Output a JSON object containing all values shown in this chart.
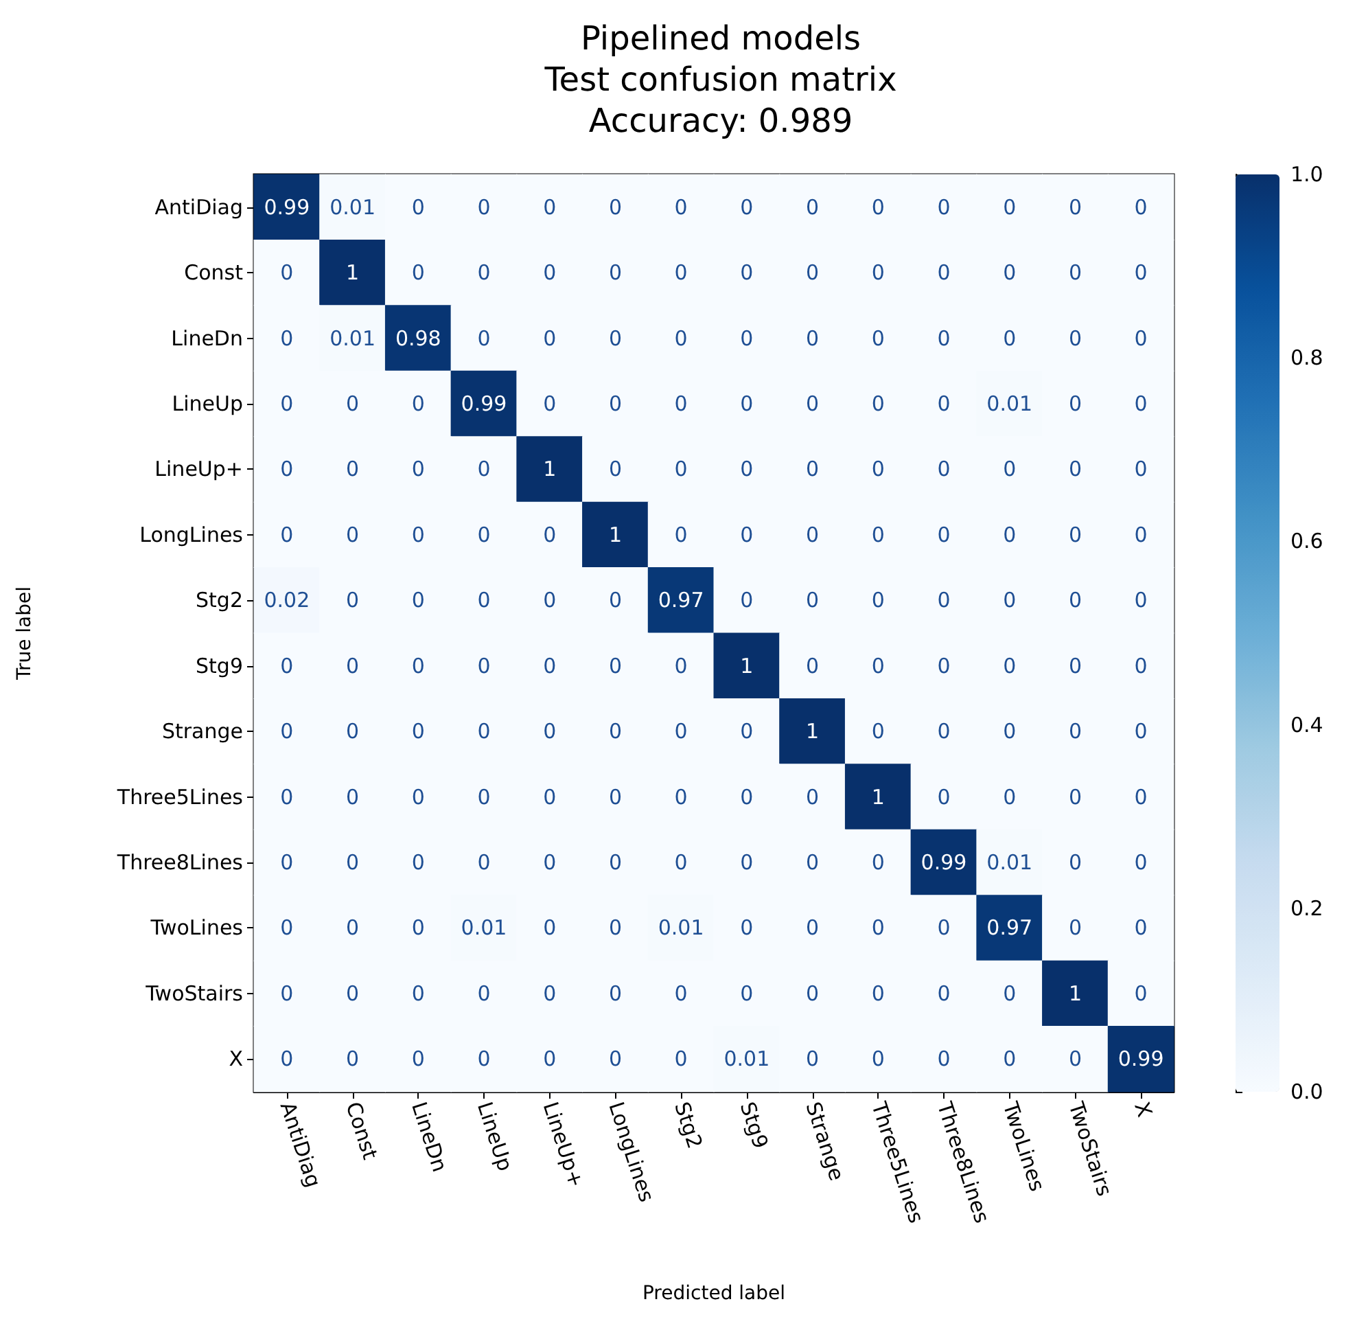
{
  "chart_data": {
    "type": "heatmap",
    "title": "Pipelined models\nTest confusion matrix\nAccuracy: 0.989",
    "xlabel": "Predicted label",
    "ylabel": "True label",
    "categories": [
      "AntiDiag",
      "Const",
      "LineDn",
      "LineUp",
      "LineUp+",
      "LongLines",
      "Stg2",
      "Stg9",
      "Strange",
      "Three5Lines",
      "Three8Lines",
      "TwoLines",
      "TwoStairs",
      "X"
    ],
    "y_categories": [
      "AntiDiag",
      "Const",
      "LineDn",
      "LineUp",
      "LineUp+",
      "LongLines",
      "Stg2",
      "Stg9",
      "Strange",
      "Three5Lines",
      "Three8Lines",
      "TwoLines",
      "TwoStairs",
      "X"
    ],
    "cells": [
      [
        0.99,
        0.01,
        0,
        0,
        0,
        0,
        0,
        0,
        0,
        0,
        0,
        0,
        0,
        0
      ],
      [
        0,
        1,
        0,
        0,
        0,
        0,
        0,
        0,
        0,
        0,
        0,
        0,
        0,
        0
      ],
      [
        0,
        0.01,
        0.98,
        0,
        0,
        0,
        0,
        0,
        0,
        0,
        0,
        0,
        0,
        0
      ],
      [
        0,
        0,
        0,
        0.99,
        0,
        0,
        0,
        0,
        0,
        0,
        0,
        0.01,
        0,
        0
      ],
      [
        0,
        0,
        0,
        0,
        1,
        0,
        0,
        0,
        0,
        0,
        0,
        0,
        0,
        0
      ],
      [
        0,
        0,
        0,
        0,
        0,
        1,
        0,
        0,
        0,
        0,
        0,
        0,
        0,
        0
      ],
      [
        0.02,
        0,
        0,
        0,
        0,
        0,
        0.97,
        0,
        0,
        0,
        0,
        0,
        0,
        0
      ],
      [
        0,
        0,
        0,
        0,
        0,
        0,
        0,
        1,
        0,
        0,
        0,
        0,
        0,
        0
      ],
      [
        0,
        0,
        0,
        0,
        0,
        0,
        0,
        0,
        1,
        0,
        0,
        0,
        0,
        0
      ],
      [
        0,
        0,
        0,
        0,
        0,
        0,
        0,
        0,
        0,
        1,
        0,
        0,
        0,
        0
      ],
      [
        0,
        0,
        0,
        0,
        0,
        0,
        0,
        0,
        0,
        0,
        0.99,
        0.01,
        0,
        0
      ],
      [
        0,
        0,
        0,
        0.01,
        0,
        0,
        0.01,
        0,
        0,
        0,
        0,
        0.97,
        0,
        0
      ],
      [
        0,
        0,
        0,
        0,
        0,
        0,
        0,
        0,
        0,
        0,
        0,
        0,
        1,
        0
      ],
      [
        0,
        0,
        0,
        0,
        0,
        0,
        0,
        0.01,
        0,
        0,
        0,
        0,
        0,
        0.99
      ]
    ],
    "data_labels": true,
    "clim": [
      0,
      1
    ],
    "cticks": [
      {
        "value": 0,
        "label": "0.0"
      },
      {
        "value": 0.2,
        "label": "0.2"
      },
      {
        "value": 0.4,
        "label": "0.4"
      },
      {
        "value": 0.6,
        "label": "0.6"
      },
      {
        "value": 0.8,
        "label": "0.8"
      },
      {
        "value": 1,
        "label": "1.0"
      }
    ]
  }
}
